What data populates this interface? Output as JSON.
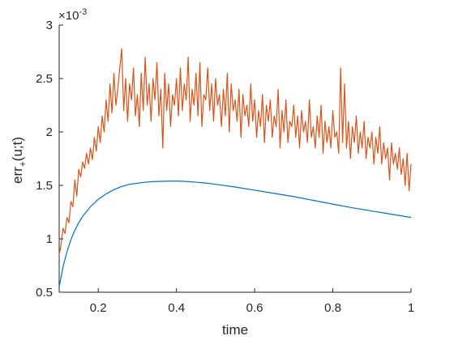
{
  "chart_data": {
    "type": "line",
    "xlabel": "time",
    "ylabel": {
      "base": "err",
      "subscript": "+",
      "suffix": "(u;t)"
    },
    "exponent_label": {
      "prefix": "×10",
      "power": "-3"
    },
    "xlim": [
      0.1,
      1.0
    ],
    "ylim": [
      0.5,
      3.0
    ],
    "x_ticks": [
      {
        "value": 0.2,
        "label": "0.2"
      },
      {
        "value": 0.4,
        "label": "0.4"
      },
      {
        "value": 0.6,
        "label": "0.6"
      },
      {
        "value": 0.8,
        "label": "0.8"
      },
      {
        "value": 1.0,
        "label": "1"
      }
    ],
    "y_ticks": [
      {
        "value": 0.5,
        "label": "0.5"
      },
      {
        "value": 1.0,
        "label": "1"
      },
      {
        "value": 1.5,
        "label": "1.5"
      },
      {
        "value": 2.0,
        "label": "2"
      },
      {
        "value": 2.5,
        "label": "2.5"
      },
      {
        "value": 3.0,
        "label": "3"
      }
    ],
    "grid": false,
    "series": [
      {
        "color": "#0072BD",
        "x": [
          0.1,
          0.11,
          0.12,
          0.13,
          0.14,
          0.15,
          0.16,
          0.18,
          0.2,
          0.22,
          0.24,
          0.26,
          0.28,
          0.3,
          0.32,
          0.34,
          0.36,
          0.38,
          0.4,
          0.42,
          0.45,
          0.48,
          0.5,
          0.55,
          0.6,
          0.65,
          0.7,
          0.75,
          0.8,
          0.85,
          0.9,
          0.95,
          1.0
        ],
        "y": [
          0.55,
          0.74,
          0.88,
          0.99,
          1.08,
          1.15,
          1.21,
          1.3,
          1.37,
          1.42,
          1.46,
          1.49,
          1.51,
          1.52,
          1.53,
          1.535,
          1.538,
          1.54,
          1.54,
          1.538,
          1.53,
          1.52,
          1.51,
          1.485,
          1.455,
          1.425,
          1.395,
          1.36,
          1.325,
          1.29,
          1.26,
          1.23,
          1.2
        ]
      },
      {
        "color": "#D95319",
        "x": [
          0.1,
          0.105,
          0.11,
          0.115,
          0.12,
          0.125,
          0.13,
          0.135,
          0.14,
          0.145,
          0.15,
          0.155,
          0.16,
          0.165,
          0.17,
          0.175,
          0.18,
          0.185,
          0.19,
          0.195,
          0.2,
          0.205,
          0.21,
          0.215,
          0.22,
          0.225,
          0.23,
          0.235,
          0.24,
          0.245,
          0.25,
          0.255,
          0.26,
          0.265,
          0.27,
          0.275,
          0.28,
          0.285,
          0.29,
          0.295,
          0.3,
          0.305,
          0.31,
          0.315,
          0.32,
          0.325,
          0.33,
          0.335,
          0.34,
          0.345,
          0.35,
          0.355,
          0.36,
          0.365,
          0.37,
          0.375,
          0.38,
          0.385,
          0.39,
          0.395,
          0.4,
          0.405,
          0.41,
          0.415,
          0.42,
          0.425,
          0.43,
          0.435,
          0.44,
          0.445,
          0.45,
          0.455,
          0.46,
          0.465,
          0.47,
          0.475,
          0.48,
          0.485,
          0.49,
          0.495,
          0.5,
          0.505,
          0.51,
          0.515,
          0.52,
          0.525,
          0.53,
          0.535,
          0.54,
          0.545,
          0.55,
          0.555,
          0.56,
          0.565,
          0.57,
          0.575,
          0.58,
          0.585,
          0.59,
          0.595,
          0.6,
          0.605,
          0.61,
          0.615,
          0.62,
          0.625,
          0.63,
          0.635,
          0.64,
          0.645,
          0.65,
          0.655,
          0.66,
          0.665,
          0.67,
          0.675,
          0.68,
          0.685,
          0.69,
          0.695,
          0.7,
          0.705,
          0.71,
          0.715,
          0.72,
          0.725,
          0.73,
          0.735,
          0.74,
          0.745,
          0.75,
          0.755,
          0.76,
          0.765,
          0.77,
          0.775,
          0.78,
          0.785,
          0.79,
          0.795,
          0.8,
          0.805,
          0.81,
          0.815,
          0.82,
          0.825,
          0.83,
          0.835,
          0.84,
          0.845,
          0.85,
          0.855,
          0.86,
          0.865,
          0.87,
          0.875,
          0.88,
          0.885,
          0.89,
          0.895,
          0.9,
          0.905,
          0.91,
          0.915,
          0.92,
          0.925,
          0.93,
          0.935,
          0.94,
          0.945,
          0.95,
          0.955,
          0.96,
          0.965,
          0.97,
          0.975,
          0.98,
          0.985,
          0.99,
          0.995,
          1.0
        ],
        "y": [
          0.85,
          0.95,
          1.1,
          1.05,
          1.2,
          1.15,
          1.35,
          1.3,
          1.55,
          1.4,
          1.65,
          1.58,
          1.72,
          1.66,
          1.8,
          1.7,
          1.85,
          1.74,
          1.95,
          1.82,
          2.05,
          1.9,
          2.15,
          2.0,
          2.3,
          2.1,
          2.45,
          2.18,
          2.55,
          2.25,
          2.4,
          2.6,
          2.78,
          2.2,
          2.5,
          2.1,
          2.45,
          2.3,
          2.6,
          2.15,
          2.35,
          2.05,
          2.55,
          2.2,
          2.7,
          2.25,
          2.45,
          2.1,
          2.5,
          2.3,
          2.65,
          2.15,
          2.4,
          1.85,
          2.55,
          2.2,
          2.45,
          2.05,
          2.35,
          2.25,
          2.5,
          2.15,
          2.6,
          2.2,
          2.45,
          2.3,
          2.7,
          2.1,
          2.4,
          2.25,
          2.55,
          2.15,
          2.65,
          2.05,
          2.35,
          2.3,
          2.6,
          2.2,
          2.45,
          2.1,
          2.5,
          2.25,
          2.35,
          2.05,
          2.4,
          2.15,
          2.55,
          2.0,
          2.45,
          2.2,
          2.3,
          2.1,
          2.4,
          1.95,
          2.35,
          2.15,
          2.25,
          2.05,
          2.45,
          2.1,
          2.3,
          1.95,
          2.2,
          2.05,
          2.35,
          1.9,
          2.25,
          2.1,
          2.3,
          1.95,
          2.15,
          2.05,
          2.4,
          1.85,
          2.2,
          2.0,
          2.3,
          1.9,
          2.1,
          2.05,
          2.25,
          1.95,
          2.15,
          1.85,
          2.2,
          2.0,
          2.1,
          1.9,
          2.3,
          1.95,
          2.05,
          1.85,
          2.15,
          1.95,
          2.25,
          1.8,
          2.1,
          1.9,
          2.05,
          1.85,
          2.2,
          1.95,
          2.0,
          1.8,
          2.6,
          1.9,
          2.45,
          1.85,
          2.1,
          1.75,
          2.05,
          1.9,
          2.15,
          1.8,
          2.0,
          1.85,
          2.1,
          1.75,
          1.95,
          1.85,
          2.0,
          1.7,
          1.95,
          1.8,
          2.05,
          1.7,
          1.9,
          1.75,
          1.85,
          1.55,
          1.9,
          1.7,
          1.8,
          1.65,
          1.85,
          1.6,
          1.75,
          1.5,
          1.8,
          1.45,
          1.7
        ]
      }
    ]
  }
}
